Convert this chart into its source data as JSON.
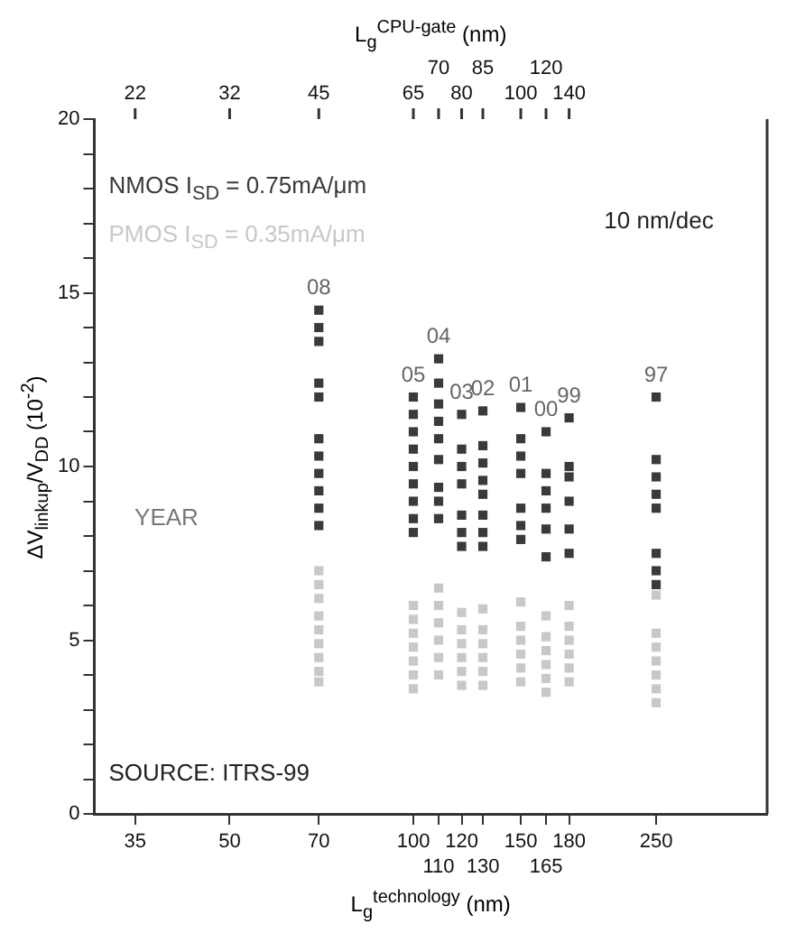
{
  "chart_data": {
    "type": "scatter",
    "xlabel": "L$_{g}$$^{technology}$ (nm)",
    "x2label": "L$_{g}$$^{CPU-gate}$ (nm)",
    "ylabel": "ΔV$_{linkup}$/V$_{DD}$ (10$^{-2}$)",
    "log": "x",
    "xlim": [
      30,
      380
    ],
    "xticks": [
      35,
      50,
      70,
      100,
      {
        "value": 110,
        "label": null
      },
      120,
      {
        "value": 130,
        "label": null
      },
      150,
      {
        "value": 165,
        "label": null
      },
      180,
      250
    ],
    "ylim": [
      0,
      20
    ],
    "yticks": [
      0,
      {
        "value": 1,
        "label": null
      },
      {
        "value": 2,
        "label": null
      },
      {
        "value": 3,
        "label": null
      },
      {
        "value": 4,
        "label": null
      },
      5,
      {
        "value": 6,
        "label": null
      },
      {
        "value": 7,
        "label": null
      },
      {
        "value": 8,
        "label": null
      },
      {
        "value": 9,
        "label": null
      },
      10,
      {
        "value": 11,
        "label": null
      },
      {
        "value": 12,
        "label": null
      },
      {
        "value": 13,
        "label": null
      },
      {
        "value": 14,
        "label": null
      },
      15,
      {
        "value": 16,
        "label": null
      },
      {
        "value": 17,
        "label": null
      },
      {
        "value": 18,
        "label": null
      },
      {
        "value": 19,
        "label": null
      },
      20
    ],
    "grid": false,
    "marker": "square",
    "legend": "top left",
    "series": [
      {
        "name": "NMOS I$_{SD}$ = 0.75mA/μm",
        "color": "#3a3a3a",
        "x": [
          70,
          70,
          70,
          70,
          70,
          70,
          70,
          70,
          70,
          70,
          70,
          100,
          100,
          100,
          100,
          100,
          100,
          100,
          100,
          100,
          110,
          110,
          110,
          110,
          110,
          110,
          110,
          110,
          110,
          120,
          120,
          120,
          120,
          120,
          120,
          120,
          130,
          130,
          130,
          130,
          130,
          130,
          130,
          130,
          150,
          150,
          150,
          150,
          150,
          150,
          150,
          165,
          165,
          165,
          165,
          165,
          165,
          180,
          180,
          180,
          180,
          180,
          180,
          250,
          250,
          250,
          250,
          250,
          250,
          250,
          250
        ],
        "values": [
          14.5,
          14.0,
          13.6,
          12.4,
          12.0,
          10.8,
          10.3,
          9.8,
          9.3,
          8.8,
          8.3,
          12.0,
          11.5,
          11.0,
          10.5,
          10.0,
          9.5,
          9.0,
          8.5,
          8.1,
          13.1,
          12.4,
          11.8,
          11.3,
          10.8,
          10.2,
          9.4,
          9.0,
          8.5,
          11.5,
          10.5,
          10.0,
          9.5,
          8.6,
          8.1,
          7.7,
          11.6,
          10.6,
          10.1,
          9.6,
          9.2,
          8.6,
          8.1,
          7.7,
          11.7,
          10.8,
          10.3,
          9.8,
          8.8,
          8.3,
          7.9,
          11.0,
          9.8,
          9.3,
          8.8,
          8.2,
          7.4,
          11.4,
          10.0,
          9.7,
          9.0,
          8.2,
          7.5,
          12.0,
          10.2,
          9.7,
          9.2,
          8.8,
          7.5,
          7.0,
          6.6
        ]
      },
      {
        "name": "PMOS I$_{SD}$ = 0.35mA/μm",
        "color": "#c8c8c8",
        "x": [
          70,
          70,
          70,
          70,
          70,
          70,
          70,
          70,
          70,
          100,
          100,
          100,
          100,
          100,
          100,
          100,
          110,
          110,
          110,
          110,
          110,
          110,
          120,
          120,
          120,
          120,
          120,
          120,
          130,
          130,
          130,
          130,
          130,
          130,
          150,
          150,
          150,
          150,
          150,
          150,
          165,
          165,
          165,
          165,
          165,
          165,
          180,
          180,
          180,
          180,
          180,
          180,
          250,
          250,
          250,
          250,
          250,
          250,
          250
        ],
        "values": [
          7.0,
          6.6,
          6.2,
          5.7,
          5.3,
          4.9,
          4.5,
          4.1,
          3.8,
          6.0,
          5.6,
          5.2,
          4.8,
          4.4,
          4.0,
          3.6,
          6.5,
          6.0,
          5.5,
          5.0,
          4.5,
          4.0,
          5.8,
          5.3,
          4.9,
          4.5,
          4.1,
          3.7,
          5.9,
          5.3,
          4.9,
          4.5,
          4.1,
          3.7,
          6.1,
          5.4,
          5.0,
          4.6,
          4.2,
          3.8,
          5.7,
          5.1,
          4.7,
          4.3,
          3.9,
          3.5,
          6.0,
          5.4,
          5.0,
          4.6,
          4.2,
          3.8,
          6.3,
          5.2,
          4.8,
          4.4,
          4.0,
          3.6,
          3.2
        ]
      }
    ],
    "annotations": [
      "YEAR",
      "10 nm/dec",
      "SOURCE: ITRS-99",
      "22",
      "32",
      "45",
      "65",
      "70",
      "80",
      "85",
      "100",
      "120",
      "140",
      "110",
      "130",
      "165",
      {
        "text": "08",
        "x": 70,
        "y": 14.5
      },
      {
        "text": "05",
        "x": 100,
        "y": 12.0
      },
      {
        "text": "04",
        "x": 110,
        "y": 13.1
      },
      {
        "text": "03",
        "x": 120,
        "y": 11.5
      },
      {
        "text": "02",
        "x": 130,
        "y": 11.6
      },
      {
        "text": "01",
        "x": 150,
        "y": 11.7
      },
      {
        "text": "00",
        "x": 165,
        "y": 11.0
      },
      {
        "text": "99",
        "x": 180,
        "y": 11.4
      },
      {
        "text": "97",
        "x": 250,
        "y": 12.0
      }
    ]
  }
}
